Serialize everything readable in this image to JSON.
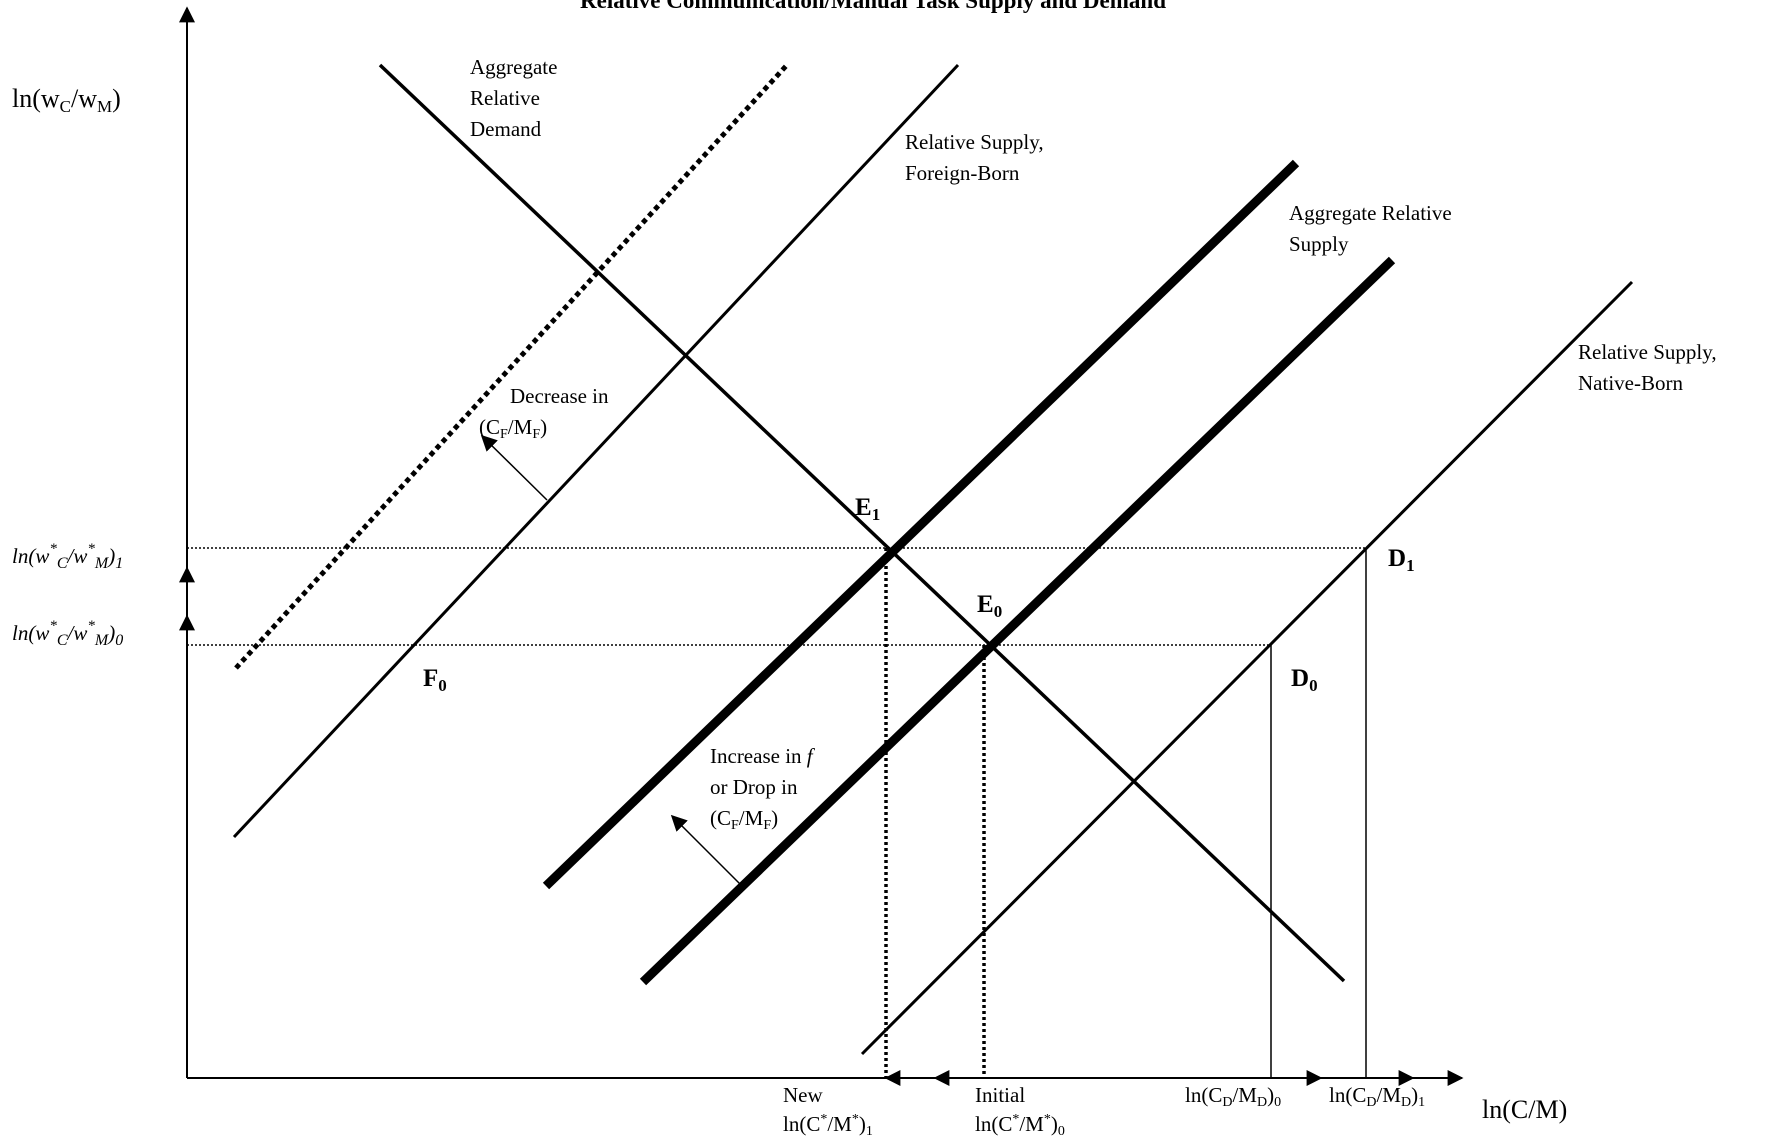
{
  "title": "Relative Communication/Manual Task Supply and Demand",
  "y_axis_label": {
    "base": "ln(w",
    "sub1": "C",
    "mid": "/w",
    "sub2": "M",
    "end": ")"
  },
  "x_axis_label": "ln(C/M)",
  "curves": {
    "aggregate_relative_demand": [
      "Aggregate",
      "Relative",
      "Demand"
    ],
    "relative_supply_foreign_born": [
      "Relative Supply,",
      "Foreign-Born"
    ],
    "aggregate_relative_supply": [
      "Aggregate Relative",
      "Supply"
    ],
    "relative_supply_native_born": [
      "Relative Supply,",
      "Native-Born"
    ]
  },
  "annotations": {
    "decrease_in": "Decrease in",
    "cf_mf": {
      "open": "(C",
      "sub1": "F",
      "mid": "/M",
      "sub2": "F",
      "close": ")"
    },
    "increase_in": "Increase in ",
    "f": "f",
    "or_drop_in": "or Drop in"
  },
  "points": {
    "E1": {
      "letter": "E",
      "sub": "1"
    },
    "E0": {
      "letter": "E",
      "sub": "0"
    },
    "D1": {
      "letter": "D",
      "sub": "1"
    },
    "D0": {
      "letter": "D",
      "sub": "0"
    },
    "F0": {
      "letter": "F",
      "sub": "0"
    }
  },
  "y_ticks": {
    "wage1": {
      "a": "ln(w",
      "sup": "*",
      "sub": "C",
      "b": "/w",
      "sub2": "M",
      "c": ")",
      "sub3": "1"
    },
    "wage0": {
      "a": "ln(w",
      "sup": "*",
      "sub": "C",
      "b": "/w",
      "sub2": "M",
      "c": ")",
      "sub3": "0"
    }
  },
  "x_ticks": {
    "new": {
      "line1": "New",
      "a": "ln(C",
      "sup": "*",
      "b": "/M",
      "sup2": "*",
      "c": ")",
      "sub": "1"
    },
    "initial": {
      "line1": "Initial",
      "a": "ln(C",
      "sup": "*",
      "b": "/M",
      "sup2": "*",
      "c": ")",
      "sub": "0"
    },
    "cd0": {
      "a": "ln(C",
      "sub": "D",
      "b": "/M",
      "sub2": "D",
      "c": ")",
      "sub3": "0"
    },
    "cd1": {
      "a": "ln(C",
      "sub": "D",
      "b": "/M",
      "sub2": "D",
      "c": ")",
      "sub3": "1"
    }
  }
}
